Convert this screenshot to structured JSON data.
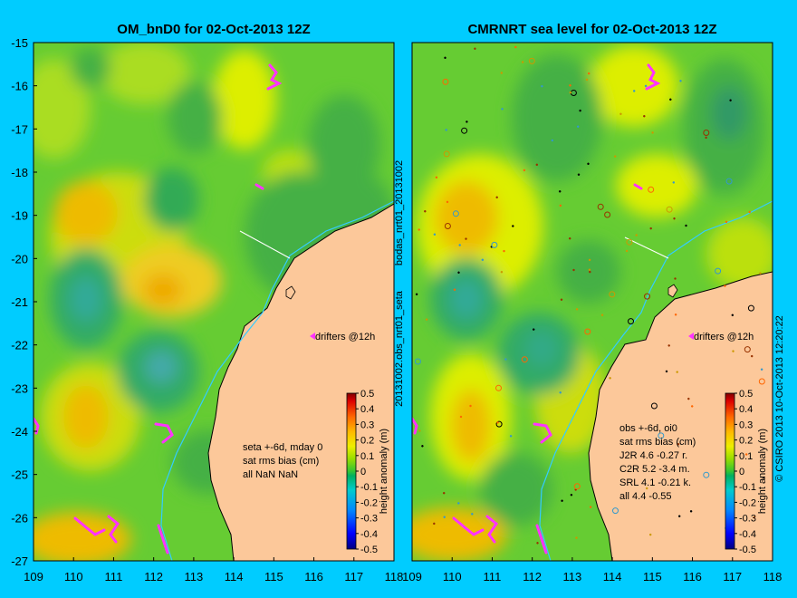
{
  "chart_data": [
    {
      "type": "heatmap",
      "title": "OM_bnD0 for 02-Oct-2013 12Z",
      "xlim": [
        109,
        118
      ],
      "ylim": [
        -27,
        -15
      ],
      "x_ticks": [
        "109",
        "110",
        "111",
        "112",
        "113",
        "114",
        "115",
        "116",
        "117",
        "118"
      ],
      "y_ticks": [
        "-15",
        "-16",
        "-17",
        "-18",
        "-19",
        "-20",
        "-21",
        "-22",
        "-23",
        "-24",
        "-25",
        "-26",
        "-27"
      ],
      "drifter_label": "drifters @12h",
      "stats_lines": [
        "seta +-6d, mday 0",
        "sat rms bias (cm)",
        "all NaN NaN"
      ],
      "colorbar": {
        "label": "height anomaly (m)",
        "range": [
          -0.5,
          0.5
        ],
        "ticks": [
          "0.5",
          "0.4",
          "0.3",
          "0.2",
          "0.1",
          "0",
          "-0.1",
          "-0.2",
          "-0.3",
          "-0.4",
          "-0.5"
        ]
      }
    },
    {
      "type": "heatmap",
      "title": "CMRNRT sea level  for 02-Oct-2013 12Z",
      "xlim": [
        109,
        118
      ],
      "ylim": [
        -27,
        -15
      ],
      "x_ticks": [
        "109",
        "110",
        "111",
        "112",
        "113",
        "114",
        "115",
        "116",
        "117",
        "118"
      ],
      "drifter_label": "drifters @12h",
      "stats_lines": [
        "obs +-6d, oi0",
        "sat rms bias (cm)",
        "J2R   4.6 -0.27 r.",
        "C2R   5.2 -3.4 m.",
        "SRL   4.1 -0.21 k.",
        "all   4.4 -0.55"
      ],
      "colorbar": {
        "label": "height anomaly (m)",
        "range": [
          -0.5,
          0.5
        ],
        "ticks": [
          "0.5",
          "0.4",
          "0.3",
          "0.2",
          "0.1",
          "0",
          "-0.1",
          "-0.2",
          "-0.3",
          "-0.4",
          "-0.5"
        ]
      }
    }
  ],
  "side_labels": {
    "left_vertical": "20131002.obs_nrt01_seta",
    "left_vertical_top": "bodas_nrt01_20131002",
    "right_vertical": "© CSIRO 2013   10-Oct-2013 12:20:22"
  },
  "colors": {
    "background": "#00ccff",
    "land": "#fcc89a",
    "coast_line": "#000000",
    "isobath": "#33ccff",
    "drifter": "#ff33ff"
  }
}
